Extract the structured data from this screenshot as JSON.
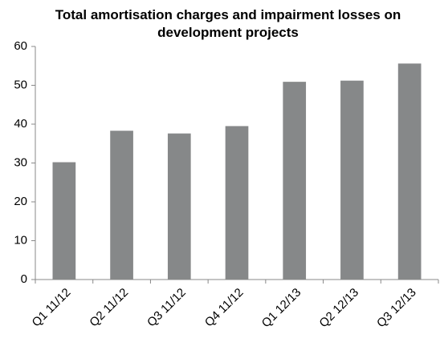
{
  "chart_data": {
    "type": "bar",
    "title": "Total amortisation charges and impairment losses on development projects",
    "categories": [
      "Q1 11/12",
      "Q2 11/12",
      "Q3 11/12",
      "Q4 11/12",
      "Q1 12/13",
      "Q2 12/13",
      "Q3 12/13"
    ],
    "values": [
      30.2,
      38.3,
      37.6,
      39.5,
      50.9,
      51.2,
      55.6
    ],
    "color": "#868889",
    "ylim": [
      0,
      60
    ],
    "yticks": [
      0,
      10,
      20,
      30,
      40,
      50,
      60
    ],
    "grid": false
  }
}
